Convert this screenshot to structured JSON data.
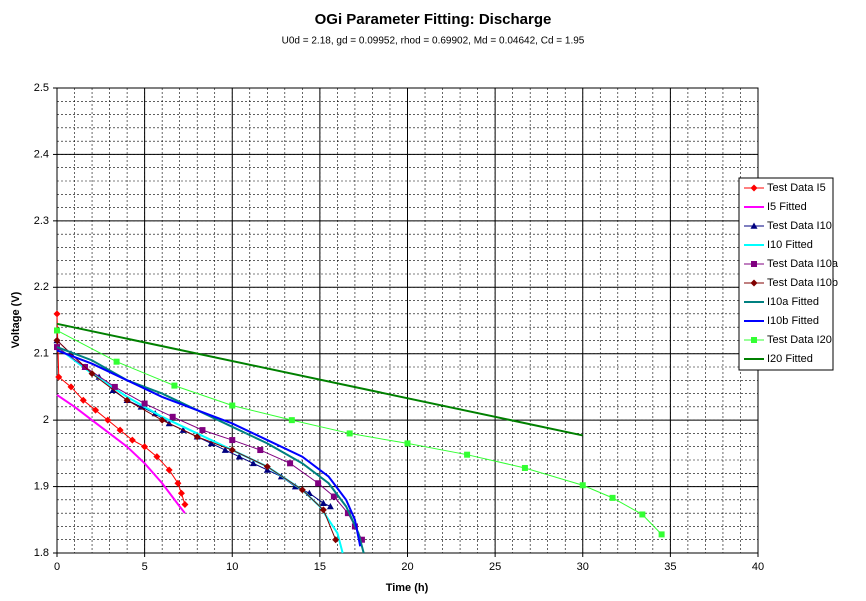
{
  "chart_data": {
    "type": "line",
    "title": "OGi Parameter Fitting: Discharge",
    "subtitle": "U0d = 2.18, gd = 0.09952, rhod = 0.69902, Md = 0.04642, Cd = 1.95",
    "xlabel": "Time (h)",
    "ylabel": "Voltage (V)",
    "xlim": [
      0,
      40
    ],
    "xticks": [
      0,
      5,
      10,
      15,
      20,
      25,
      30,
      35,
      40
    ],
    "ylim": [
      1.8,
      2.5
    ],
    "yticks": [
      1.8,
      1.9,
      2,
      2.1,
      2.2,
      2.3,
      2.4,
      2.5
    ],
    "grid": true,
    "xminor": 1,
    "yminor": 0.02,
    "legend": "right",
    "series": [
      {
        "name": "Test Data I5",
        "color": "#ff0000",
        "marker": "diamond",
        "x": [
          0,
          0.1,
          0.8,
          1.5,
          2.2,
          2.9,
          3.6,
          4.3,
          5.0,
          5.7,
          6.4,
          6.9,
          7.1,
          7.3
        ],
        "values": [
          2.16,
          2.065,
          2.05,
          2.03,
          2.015,
          2.0,
          1.985,
          1.97,
          1.96,
          1.945,
          1.925,
          1.905,
          1.89,
          1.873
        ]
      },
      {
        "name": "I5 Fitted",
        "color": "#ff00ff",
        "marker": "none",
        "x": [
          0,
          1,
          2,
          3,
          4,
          5,
          6,
          7,
          7.3
        ],
        "values": [
          2.038,
          2.02,
          2.0,
          1.98,
          1.96,
          1.935,
          1.905,
          1.87,
          1.86
        ]
      },
      {
        "name": "Test Data I10",
        "color": "#000080",
        "marker": "triangle",
        "x": [
          0,
          0.8,
          1.6,
          2.4,
          3.2,
          4.0,
          4.8,
          5.6,
          6.4,
          7.2,
          8.0,
          8.8,
          9.6,
          10.4,
          11.2,
          12.0,
          12.8,
          13.6,
          14.4,
          15.2,
          15.6
        ],
        "values": [
          2.12,
          2.1,
          2.08,
          2.065,
          2.045,
          2.03,
          2.02,
          2.01,
          1.995,
          1.985,
          1.975,
          1.965,
          1.955,
          1.945,
          1.935,
          1.925,
          1.915,
          1.9,
          1.89,
          1.875,
          1.87
        ]
      },
      {
        "name": "I10 Fitted",
        "color": "#00ffff",
        "marker": "none",
        "x": [
          0,
          2,
          4,
          6,
          8,
          10,
          12,
          14,
          15,
          16,
          16.3
        ],
        "values": [
          2.11,
          2.07,
          2.035,
          2.005,
          1.98,
          1.955,
          1.93,
          1.895,
          1.87,
          1.83,
          1.8
        ]
      },
      {
        "name": "Test Data I10a",
        "color": "#800080",
        "marker": "square",
        "x": [
          0,
          1.6,
          3.3,
          5,
          6.6,
          8.3,
          10,
          11.6,
          13.3,
          14.9,
          15.8,
          16.6,
          17,
          17.4
        ],
        "values": [
          2.11,
          2.08,
          2.05,
          2.025,
          2.005,
          1.985,
          1.97,
          1.955,
          1.935,
          1.905,
          1.885,
          1.86,
          1.84,
          1.82
        ]
      },
      {
        "name": "Test Data I10b",
        "color": "#800000",
        "marker": "diamond",
        "x": [
          0,
          2,
          4,
          6,
          8,
          10,
          12,
          14,
          15.2,
          15.9
        ],
        "values": [
          2.12,
          2.07,
          2.03,
          2.0,
          1.975,
          1.955,
          1.93,
          1.895,
          1.865,
          1.82
        ]
      },
      {
        "name": "I10a Fitted",
        "color": "#008080",
        "marker": "none",
        "x": [
          0,
          2,
          4,
          6,
          8,
          10,
          12,
          14,
          15.5,
          16.5,
          17.2,
          17.5
        ],
        "values": [
          2.11,
          2.09,
          2.06,
          2.04,
          2.015,
          1.99,
          1.965,
          1.935,
          1.905,
          1.87,
          1.83,
          1.8
        ]
      },
      {
        "name": "I10b Fitted",
        "color": "#0000ff",
        "marker": "none",
        "x": [
          0,
          2,
          4,
          6,
          8,
          10,
          12,
          14,
          15.5,
          16.5,
          17,
          17.3
        ],
        "values": [
          2.105,
          2.085,
          2.06,
          2.035,
          2.015,
          1.995,
          1.97,
          1.945,
          1.915,
          1.88,
          1.85,
          1.81
        ]
      },
      {
        "name": "Test Data I20",
        "color": "#33ff33",
        "marker": "square",
        "x": [
          0,
          3.4,
          6.7,
          10,
          13.4,
          16.7,
          20,
          23.4,
          26.7,
          30,
          31.7,
          33.4,
          34.5
        ],
        "values": [
          2.135,
          2.088,
          2.052,
          2.022,
          2.0,
          1.98,
          1.965,
          1.948,
          1.928,
          1.902,
          1.883,
          1.858,
          1.828
        ]
      },
      {
        "name": "I20 Fitted",
        "color": "#008000",
        "marker": "none",
        "x": [
          0,
          30
        ],
        "values": [
          2.145,
          1.977
        ]
      }
    ]
  }
}
